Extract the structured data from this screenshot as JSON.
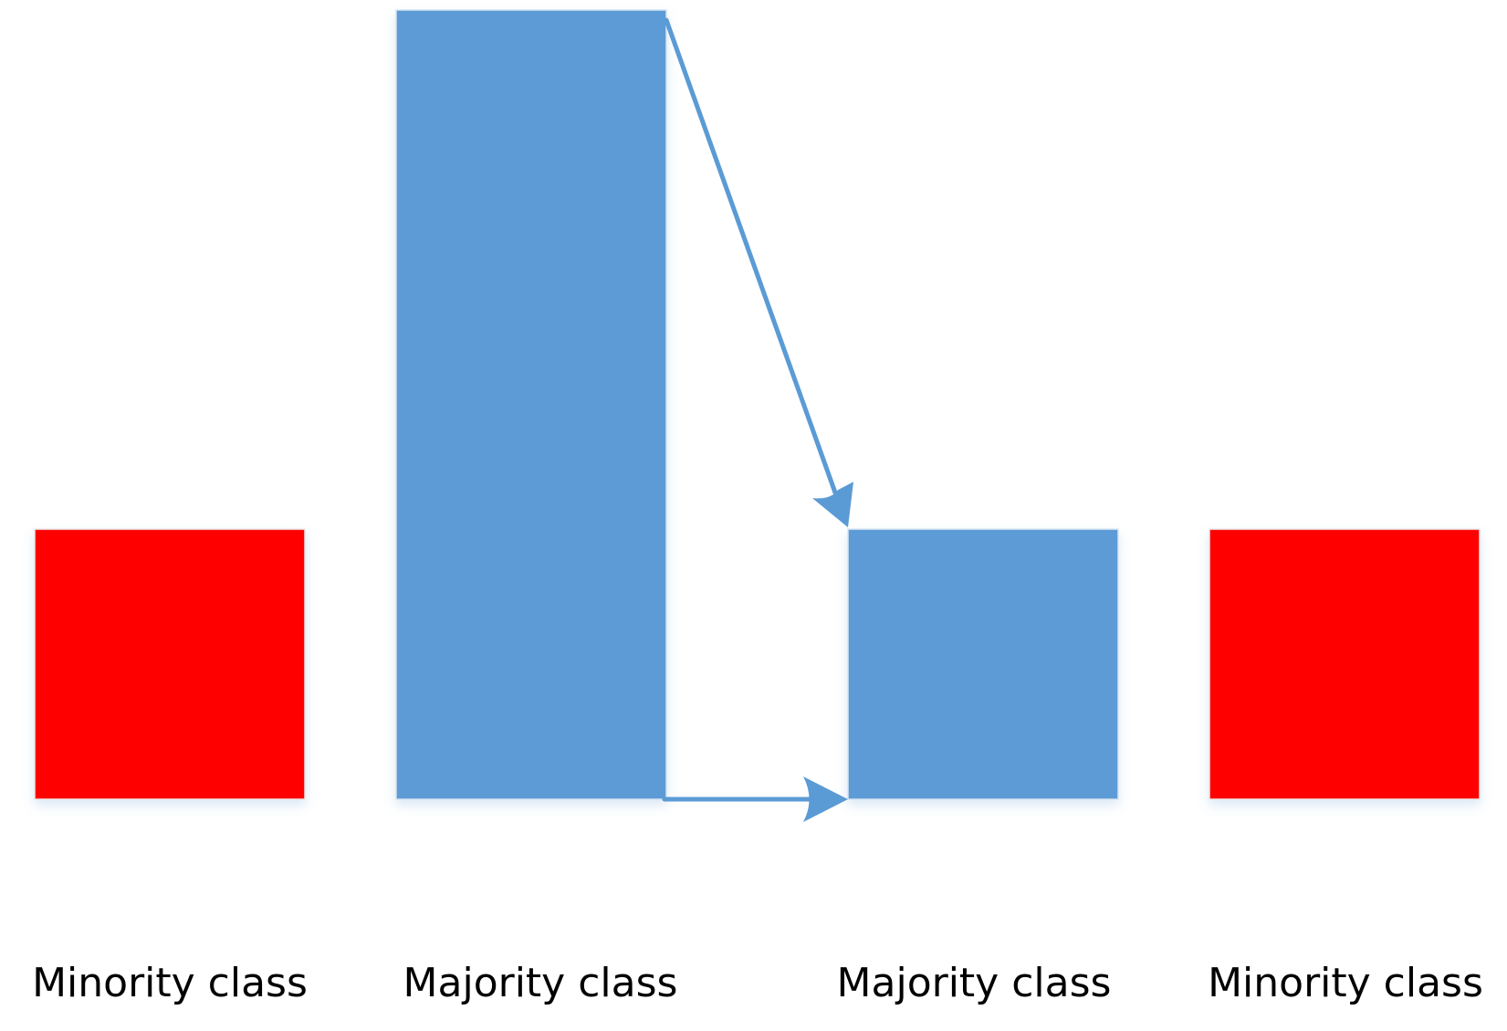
{
  "diagram": {
    "colors": {
      "minority": "#ff0000",
      "majority": "#5b9bd5",
      "arrow": "#5b9bd5",
      "text": "#000000"
    },
    "labels": {
      "minority_before": "Minority class",
      "majority_before": "Majority class",
      "majority_after": "Majority class",
      "minority_after": "Minority class"
    }
  }
}
